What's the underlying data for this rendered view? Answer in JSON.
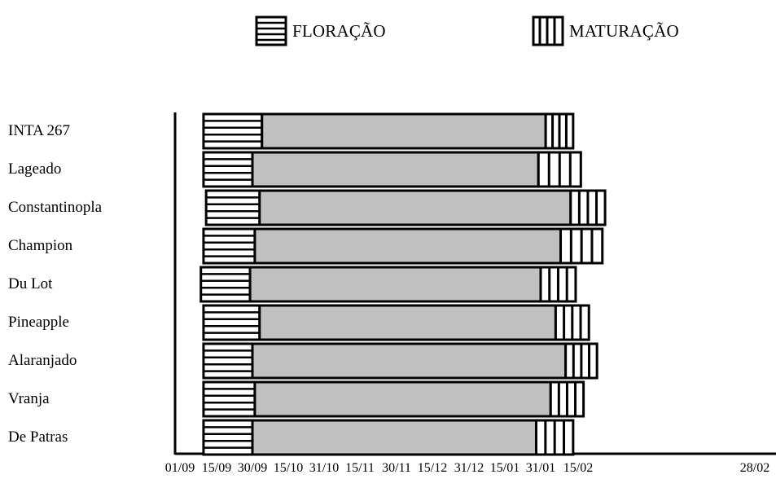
{
  "chart_data": {
    "type": "bar",
    "subtype": "stacked-horizontal-gantt",
    "legend": [
      {
        "name": "FLORAÇÃO",
        "pattern": "horizontal-stripes"
      },
      {
        "name": "MATURAÇÃO",
        "pattern": "vertical-stripes"
      }
    ],
    "legend_placement": "top",
    "x_ticks": [
      "01/09",
      "15/09",
      "30/09",
      "15/10",
      "31/10",
      "15/11",
      "30/11",
      "15/12",
      "31/12",
      "15/01",
      "31/01",
      "15/02",
      "28/02"
    ],
    "categories": [
      "INTA 267",
      "Lageado",
      "Constantinopla",
      "Champion",
      "Du Lot",
      "Pineapple",
      "Alaranjado",
      "Vranja",
      "De Patras"
    ],
    "series": [
      {
        "name": "FLORAÇÃO",
        "start": [
          "10/09",
          "10/09",
          "11/09",
          "10/09",
          "09/09",
          "10/09",
          "10/09",
          "10/09",
          "10/09"
        ],
        "end": [
          "04/10",
          "30/09",
          "03/10",
          "01/10",
          "29/09",
          "03/10",
          "30/09",
          "01/10",
          "30/09"
        ]
      },
      {
        "name": "",
        "start": [
          "04/10",
          "30/09",
          "03/10",
          "01/10",
          "29/09",
          "03/10",
          "30/09",
          "01/10",
          "30/09"
        ],
        "end": [
          "02/02",
          "30/01",
          "12/02",
          "08/02",
          "31/01",
          "06/02",
          "10/02",
          "04/02",
          "29/01"
        ]
      },
      {
        "name": "MATURAÇÃO",
        "start": [
          "02/02",
          "30/01",
          "12/02",
          "08/02",
          "31/01",
          "06/02",
          "10/02",
          "04/02",
          "29/01"
        ],
        "end": [
          "13/02",
          "16/02",
          "25/02",
          "24/02",
          "14/02",
          "19/02",
          "22/02",
          "17/02",
          "13/02"
        ]
      }
    ],
    "colors": {
      "growth": "#c0c0c0",
      "stroke": "#000000",
      "background": "#ffffff"
    },
    "grid": false
  }
}
